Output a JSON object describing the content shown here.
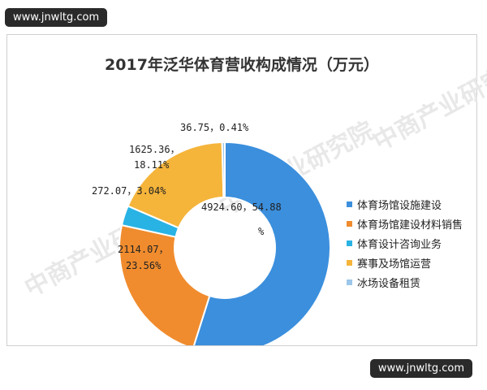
{
  "watermark": {
    "top": "www.jnwltg.com",
    "bottom": "www.jnwltg.com",
    "ghost": "中商产业研究院"
  },
  "chart_data": {
    "type": "pie",
    "title": "2017年泛华体育营收构成情况（万元）",
    "donut": true,
    "legend_position": "right",
    "series": [
      {
        "name": "体育场馆设施建设",
        "value": 4924.6,
        "percent": "54.88%",
        "color": "#3b8fdd",
        "label": "4924.60，54.88%"
      },
      {
        "name": "体育场馆建设材料销售",
        "value": 2114.07,
        "percent": "23.56%",
        "color": "#f08c2e",
        "label": "2114.07，23.56%"
      },
      {
        "name": "体育设计咨询业务",
        "value": 272.07,
        "percent": "3.04%",
        "color": "#29b3e4",
        "label": "272.07，3.04%"
      },
      {
        "name": "赛事及场馆运营",
        "value": 1625.36,
        "percent": "18.11%",
        "color": "#f5b43a",
        "label": "1625.36，18.11%"
      },
      {
        "name": "冰场设备租赁",
        "value": 36.75,
        "percent": "0.41%",
        "color": "#9cc7ea",
        "label": "36.75，0.41%"
      }
    ],
    "label_parts": {
      "s0": [
        "4924.60，54.88",
        "%"
      ],
      "s1": [
        "2114.07，",
        "23.56%"
      ],
      "s2": [
        "272.07，3.04%"
      ],
      "s3": [
        "1625.36，",
        "18.11%"
      ],
      "s4": [
        "36.75，0.41%"
      ]
    }
  }
}
